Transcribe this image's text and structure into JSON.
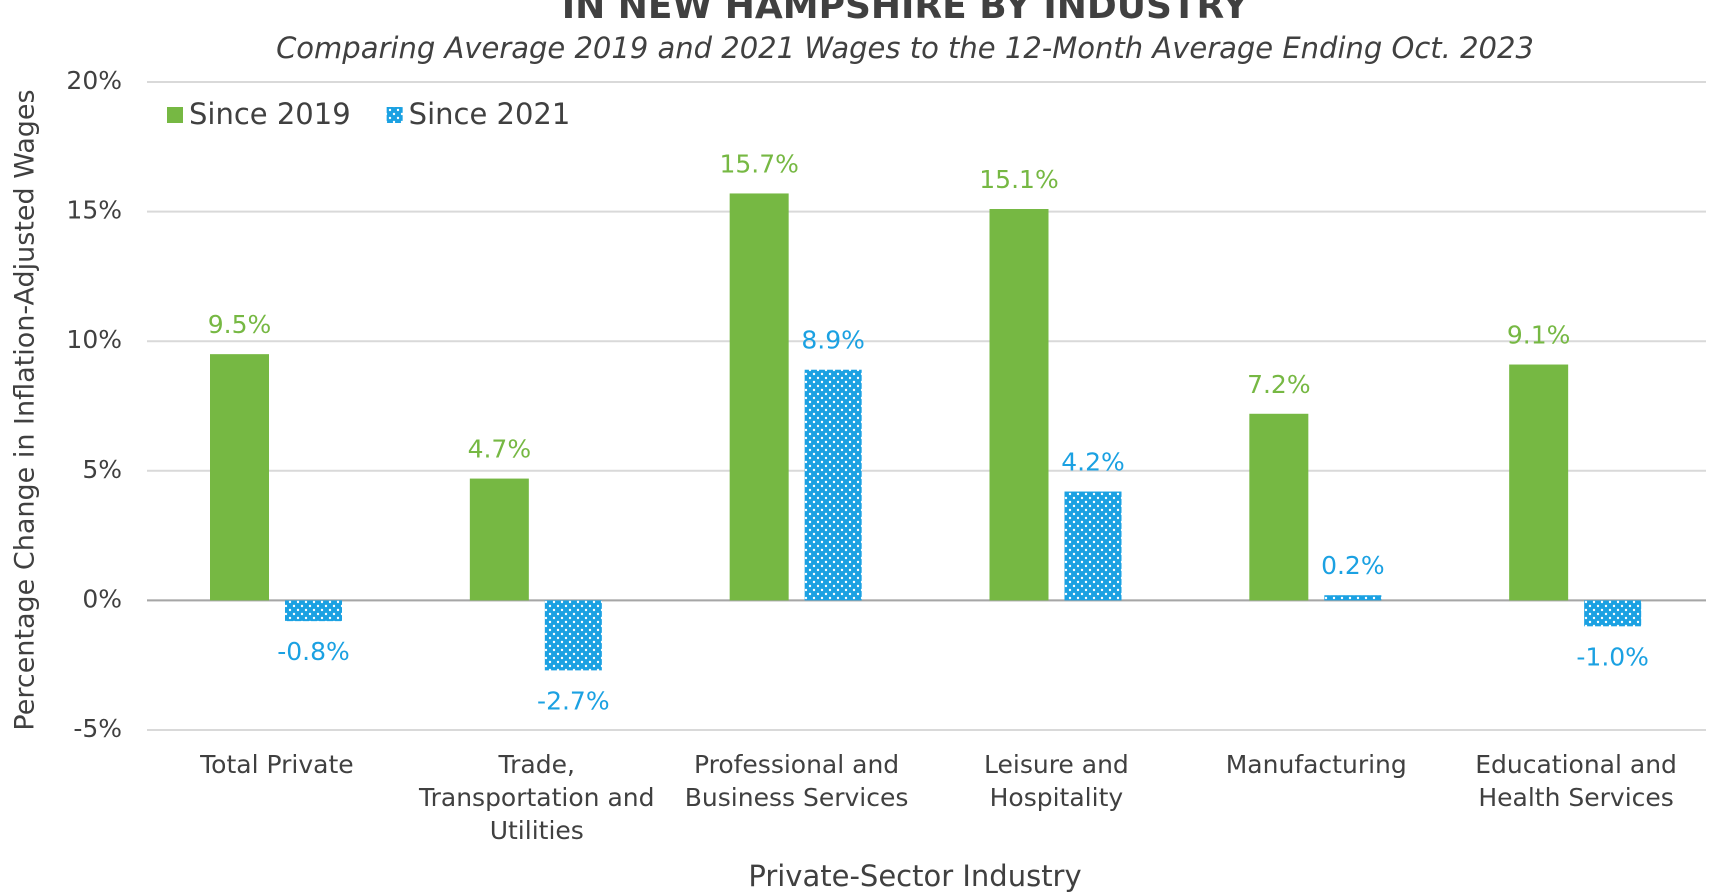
{
  "chart_data": {
    "type": "bar",
    "title": "IN NEW HAMPSHIRE BY INDUSTRY",
    "subtitle": "Comparing Average 2019 and 2021 Wages to the 12-Month Average Ending Oct. 2023",
    "x_label": "Private-Sector Industry",
    "y_label": "Percentage Change in Inflation-Adjusted Wages",
    "categories": [
      "Total Private",
      "Trade, Transportation and Utilities",
      "Professional and Business Services",
      "Leisure and Hospitality",
      "Manufacturing",
      "Educational and Health Services"
    ],
    "series": [
      {
        "name": "Since 2019",
        "color": "#76b843",
        "values": [
          9.5,
          4.7,
          15.7,
          15.1,
          7.2,
          9.1
        ],
        "value_labels": [
          "9.5%",
          "4.7%",
          "15.7%",
          "15.1%",
          "7.2%",
          "9.1%"
        ]
      },
      {
        "name": "Since 2021",
        "color": "#1ba1e2",
        "pattern": "dots",
        "values": [
          -0.8,
          -2.7,
          8.9,
          4.2,
          0.2,
          -1.0
        ],
        "value_labels": [
          "-0.8%",
          "-2.7%",
          "8.9%",
          "4.2%",
          "0.2%",
          "-1.0%"
        ]
      }
    ],
    "ylim": [
      -5,
      20
    ],
    "yticks": [
      {
        "value": -5,
        "label": "-5%"
      },
      {
        "value": 0,
        "label": "0%"
      },
      {
        "value": 5,
        "label": "5%"
      },
      {
        "value": 10,
        "label": "10%"
      },
      {
        "value": 15,
        "label": "15%"
      },
      {
        "value": 20,
        "label": "20%"
      }
    ],
    "grid": true,
    "legend": "top-left"
  }
}
